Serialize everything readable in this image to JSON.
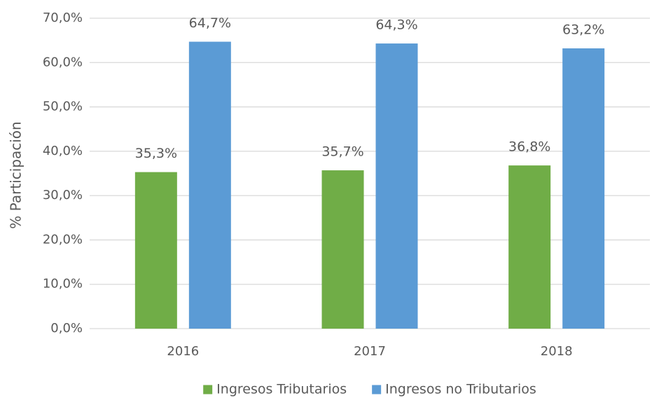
{
  "chart_data": {
    "type": "bar",
    "ylabel": "% Participación",
    "categories": [
      "2016",
      "2017",
      "2018"
    ],
    "series": [
      {
        "name": "Ingresos Tributarios",
        "color": "#70ad47",
        "values": [
          35.3,
          35.7,
          36.8
        ],
        "value_labels": [
          "35,3%",
          "35,7%",
          "36,8%"
        ]
      },
      {
        "name": "Ingresos no Tributarios",
        "color": "#5b9bd5",
        "values": [
          64.7,
          64.3,
          63.2
        ],
        "value_labels": [
          "64,7%",
          "64,3%",
          "63,2%"
        ]
      }
    ],
    "ylim": [
      0,
      70
    ],
    "yticks": [
      {
        "value": 0,
        "label": "0,0%"
      },
      {
        "value": 10,
        "label": "10,0%"
      },
      {
        "value": 20,
        "label": "20,0%"
      },
      {
        "value": 30,
        "label": "30,0%"
      },
      {
        "value": 40,
        "label": "40,0%"
      },
      {
        "value": 50,
        "label": "50,0%"
      },
      {
        "value": 60,
        "label": "60,0%"
      },
      {
        "value": 70,
        "label": "70,0%"
      }
    ],
    "grid": true,
    "legend": "bottom"
  }
}
